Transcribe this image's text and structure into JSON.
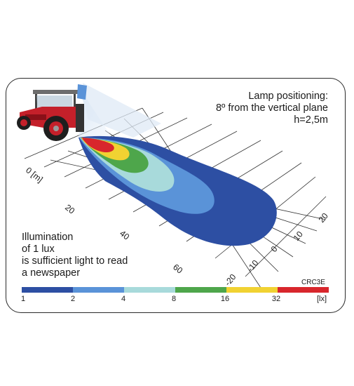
{
  "lamp_text": [
    "Lamp positioning:",
    "8º from the vertical plane",
    "h=2,5m"
  ],
  "illumination_text": [
    "Illumination",
    "of 1 lux",
    "is sufficient light to read",
    "a newspaper"
  ],
  "code": "CRC3E",
  "distance_labels": [
    "0 [m]",
    "20",
    "40",
    "60"
  ],
  "lateral_labels": [
    "20",
    "10",
    "0",
    "-10",
    "-20"
  ],
  "legend": {
    "colors": [
      "#2d4fa3",
      "#5a93d8",
      "#a8dadb",
      "#4ea64b",
      "#f1d232",
      "#d8262c"
    ],
    "ticks": [
      "1",
      "2",
      "4",
      "8",
      "16",
      "32",
      "[lx]"
    ]
  }
}
